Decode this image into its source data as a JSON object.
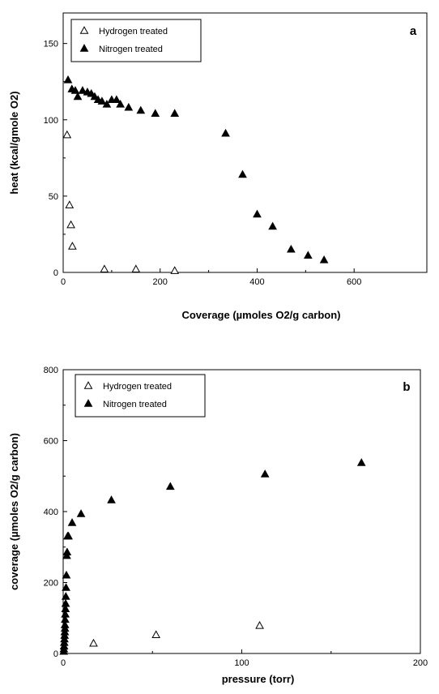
{
  "chart_data": [
    {
      "type": "scatter",
      "panel_label": "a",
      "xlabel": "Coverage (µmoles O2/g carbon)",
      "ylabel": "heat (kcal/gmole O2)",
      "xlim": [
        0,
        750
      ],
      "ylim": [
        0,
        170
      ],
      "xticks": [
        0,
        200,
        400,
        600
      ],
      "yticks": [
        0,
        50,
        100,
        150
      ],
      "grid": false,
      "legend_position": "top-left",
      "series": [
        {
          "name": "Hydrogen treated",
          "marker": "open-triangle",
          "x": [
            8,
            13,
            16,
            19,
            85,
            150,
            230
          ],
          "y": [
            90,
            44,
            31,
            17,
            2,
            2,
            1
          ]
        },
        {
          "name": "Nitrogen treated",
          "marker": "filled-triangle",
          "x": [
            10,
            18,
            25,
            30,
            40,
            50,
            58,
            65,
            72,
            80,
            90,
            100,
            110,
            118,
            135,
            160,
            190,
            230,
            335,
            370,
            400,
            432,
            470,
            505,
            538
          ],
          "y": [
            126,
            120,
            119,
            115,
            119,
            118,
            117,
            115,
            113,
            112,
            110,
            113,
            113,
            110,
            108,
            106,
            104,
            104,
            91,
            64,
            38,
            30,
            15,
            11,
            8
          ]
        }
      ]
    },
    {
      "type": "scatter",
      "panel_label": "b",
      "xlabel": "pressure (torr)",
      "ylabel": "coverage (µmoles O2/g carbon)",
      "xlim": [
        0,
        200
      ],
      "ylim": [
        0,
        800
      ],
      "xticks": [
        0,
        100,
        200
      ],
      "yticks": [
        0,
        200,
        400,
        600,
        800
      ],
      "grid": false,
      "legend_position": "top-left",
      "series": [
        {
          "name": "Hydrogen treated",
          "marker": "open-triangle",
          "x": [
            17,
            52,
            110
          ],
          "y": [
            28,
            52,
            78
          ]
        },
        {
          "name": "Nitrogen treated",
          "marker": "filled-triangle",
          "x": [
            0.3,
            0.4,
            0.5,
            0.6,
            0.7,
            0.8,
            0.9,
            1.0,
            1.0,
            1.1,
            1.2,
            1.3,
            1.4,
            1.5,
            1.6,
            1.8,
            2.0,
            2.2,
            2.5,
            3.0,
            5.0,
            10,
            27,
            60,
            113,
            167
          ],
          "y": [
            5,
            12,
            20,
            30,
            40,
            50,
            60,
            70,
            80,
            95,
            110,
            125,
            140,
            160,
            185,
            220,
            275,
            285,
            330,
            330,
            368,
            393,
            432,
            470,
            505,
            537
          ]
        }
      ]
    }
  ]
}
